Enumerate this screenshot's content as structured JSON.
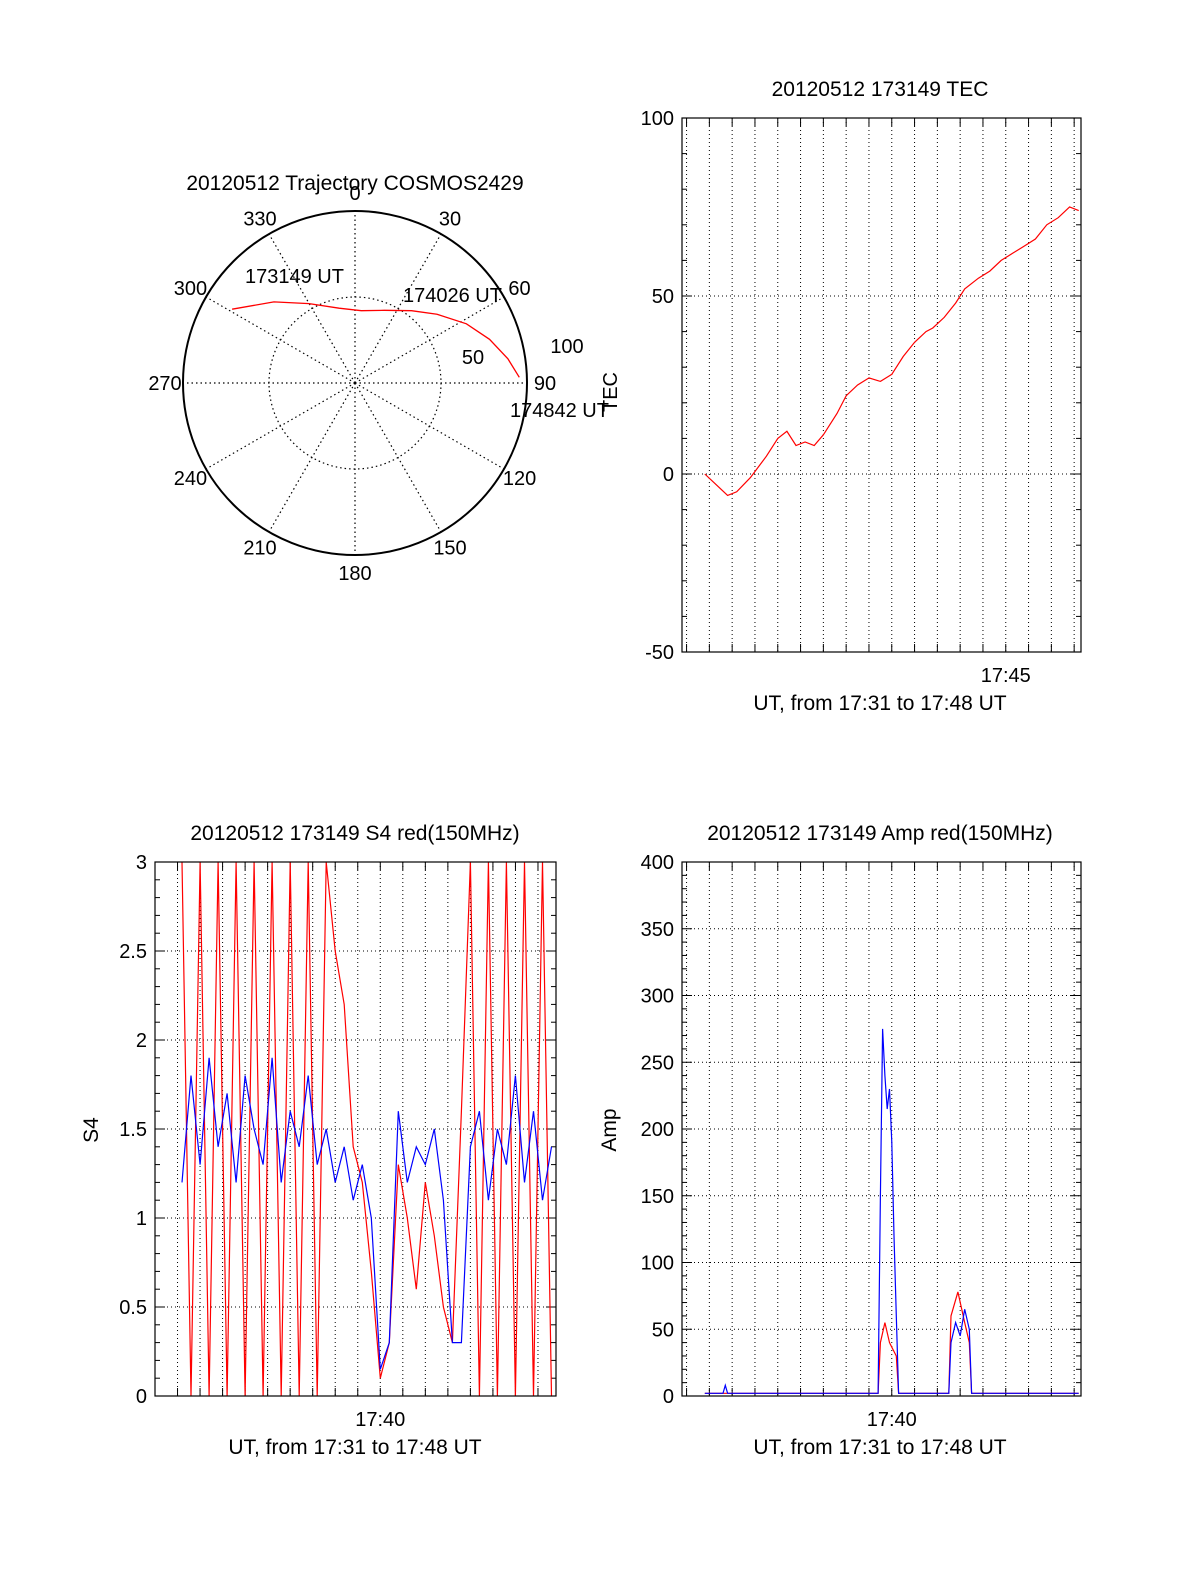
{
  "colors": {
    "red": "#ff0000",
    "blue": "#0000ff",
    "axis": "#000000",
    "grid": "#000000",
    "background": "#ffffff"
  },
  "chart_data": [
    {
      "type": "polar",
      "title": "20120512 Trajectory COSMOS2429",
      "azimuth_labels": [
        "0",
        "30",
        "60",
        "90",
        "120",
        "150",
        "180",
        "210",
        "240",
        "270",
        "300",
        "330"
      ],
      "radial_labels": [
        "50",
        "100"
      ],
      "grid": true,
      "annotations": [
        "173149 UT",
        "174026 UT",
        "174842 UT"
      ],
      "vertical_label": "TEC",
      "trajectory": {
        "color": "#ff0000",
        "points": [
          {
            "time": "173149 UT",
            "az": 301,
            "el": 15
          },
          {
            "az": 315,
            "el": 30
          },
          {
            "az": 330,
            "el": 42
          },
          {
            "az": 348,
            "el": 50
          },
          {
            "az": 5,
            "el": 52
          },
          {
            "time": "174026 UT",
            "az": 22,
            "el": 49
          },
          {
            "az": 38,
            "el": 42
          },
          {
            "az": 50,
            "el": 34
          },
          {
            "az": 62,
            "el": 24
          },
          {
            "az": 72,
            "el": 16
          },
          {
            "az": 81,
            "el": 9
          },
          {
            "time": "174842 UT",
            "az": 88,
            "el": 4
          }
        ]
      }
    },
    {
      "type": "line",
      "title": "20120512 173149 TEC",
      "xlabel": "UT, from 17:31 to 17:48 UT",
      "x_tick_labels": [
        {
          "minute": 45,
          "label": "17:45"
        }
      ],
      "xlim_minutes": [
        30.8,
        48.3
      ],
      "ylim": [
        -50,
        100
      ],
      "y_ticks": [
        "-50",
        "0",
        "50",
        "100"
      ],
      "grid": true,
      "series": [
        {
          "color": "#ff0000",
          "x_minutes": [
            31.8,
            32.3,
            32.8,
            33.2,
            33.8,
            34.5,
            35.0,
            35.4,
            35.8,
            36.2,
            36.6,
            37.0,
            37.6,
            38.0,
            38.5,
            39.0,
            39.5,
            40.0,
            40.5,
            41.0,
            41.5,
            41.8,
            42.3,
            42.8,
            43.2,
            43.8,
            44.3,
            44.8,
            45.3,
            45.8,
            46.3,
            46.8,
            47.3,
            47.8,
            48.2
          ],
          "values": [
            0,
            -3,
            -6,
            -5,
            -1,
            5,
            10,
            12,
            8,
            9,
            8,
            11,
            17,
            22,
            25,
            27,
            26,
            28,
            33,
            37,
            40,
            41,
            44,
            48,
            52,
            55,
            57,
            60,
            62,
            64,
            66,
            70,
            72,
            75,
            74
          ]
        }
      ]
    },
    {
      "type": "line",
      "title": "20120512 173149 S4 red(150MHz)",
      "xlabel": "UT, from 17:31 to 17:48 UT",
      "ylabel": "S4",
      "x_tick_labels": [
        {
          "minute": 40,
          "label": "17:40"
        }
      ],
      "xlim_minutes": [
        30.0,
        47.8
      ],
      "ylim": [
        0,
        3
      ],
      "y_ticks": [
        "0",
        "0.5",
        "1",
        "1.5",
        "2",
        "2.5",
        "3"
      ],
      "grid": true,
      "series": [
        {
          "color": "#ff0000",
          "x_minutes": [
            31.2,
            31.6,
            32.0,
            32.4,
            32.8,
            33.2,
            33.6,
            34.0,
            34.4,
            34.8,
            35.2,
            35.6,
            36.0,
            36.4,
            36.8,
            37.2,
            37.6,
            38.0,
            38.4,
            38.8,
            39.2,
            39.6,
            40.0,
            40.4,
            40.8,
            41.2,
            41.6,
            42.0,
            42.4,
            42.8,
            43.2,
            43.6,
            44.0,
            44.4,
            44.8,
            45.2,
            45.6,
            46.0,
            46.4,
            46.8,
            47.2,
            47.6
          ],
          "values": [
            3,
            0,
            3,
            0,
            3,
            0,
            3,
            0,
            3,
            0,
            3,
            0,
            3,
            0,
            3,
            0,
            3,
            2.5,
            2.2,
            1.4,
            1.2,
            0.7,
            0.1,
            0.3,
            1.3,
            1.0,
            0.6,
            1.2,
            0.9,
            0.5,
            0.3,
            1.6,
            3,
            0,
            3,
            0,
            3,
            0,
            3,
            0,
            3,
            0
          ]
        },
        {
          "color": "#0000ff",
          "x_minutes": [
            31.2,
            31.6,
            32.0,
            32.4,
            32.8,
            33.2,
            33.6,
            34.0,
            34.4,
            34.8,
            35.2,
            35.6,
            36.0,
            36.4,
            36.8,
            37.2,
            37.6,
            38.0,
            38.4,
            38.8,
            39.2,
            39.6,
            40.0,
            40.4,
            40.8,
            41.2,
            41.6,
            42.0,
            42.4,
            42.8,
            43.2,
            43.6,
            44.0,
            44.4,
            44.8,
            45.2,
            45.6,
            46.0,
            46.4,
            46.8,
            47.2,
            47.6
          ],
          "values": [
            1.2,
            1.8,
            1.3,
            1.9,
            1.4,
            1.7,
            1.2,
            1.8,
            1.5,
            1.3,
            1.9,
            1.2,
            1.6,
            1.4,
            1.8,
            1.3,
            1.5,
            1.2,
            1.4,
            1.1,
            1.3,
            1.0,
            0.15,
            0.3,
            1.6,
            1.2,
            1.4,
            1.3,
            1.5,
            1.1,
            0.3,
            0.3,
            1.4,
            1.6,
            1.1,
            1.5,
            1.3,
            1.8,
            1.2,
            1.6,
            1.1,
            1.4
          ]
        }
      ]
    },
    {
      "type": "line",
      "title": "20120512 173149 Amp red(150MHz)",
      "xlabel": "UT, from 17:31 to 17:48 UT",
      "ylabel": "Amp",
      "x_tick_labels": [
        {
          "minute": 40,
          "label": "17:40"
        }
      ],
      "xlim_minutes": [
        30.8,
        48.3
      ],
      "ylim": [
        0,
        400
      ],
      "y_ticks": [
        "0",
        "50",
        "100",
        "150",
        "200",
        "250",
        "300",
        "350",
        "400"
      ],
      "grid": true,
      "series": [
        {
          "color": "#ff0000",
          "x_minutes": [
            31.8,
            39.4,
            39.5,
            39.7,
            39.9,
            40.2,
            40.3,
            42.5,
            42.6,
            42.9,
            43.2,
            43.4,
            43.5,
            48.2
          ],
          "values": [
            2,
            2,
            40,
            55,
            40,
            30,
            2,
            2,
            60,
            78,
            55,
            40,
            2,
            2
          ]
        },
        {
          "color": "#0000ff",
          "x_minutes": [
            31.8,
            32.6,
            32.7,
            32.8,
            39.4,
            39.5,
            39.6,
            39.7,
            39.8,
            39.9,
            40.0,
            40.1,
            40.2,
            40.3,
            42.5,
            42.6,
            42.8,
            43.0,
            43.2,
            43.4,
            43.5,
            48.2
          ],
          "values": [
            2,
            2,
            8,
            2,
            2,
            150,
            275,
            240,
            215,
            230,
            190,
            120,
            60,
            2,
            2,
            40,
            55,
            45,
            65,
            50,
            2,
            2
          ]
        }
      ]
    }
  ]
}
